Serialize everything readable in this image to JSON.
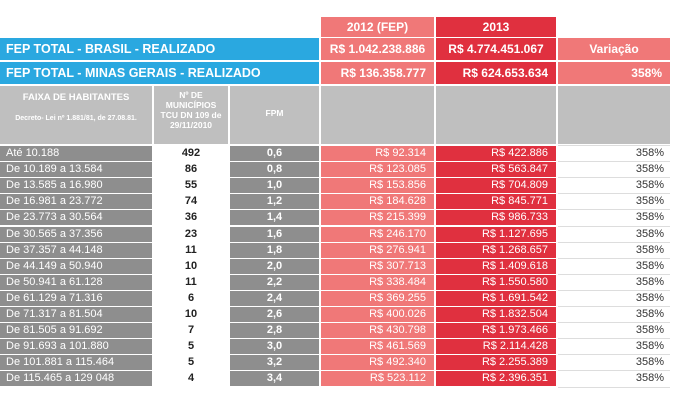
{
  "header": {
    "col_2012": "2012 (FEP)",
    "col_2013": "2013",
    "col_variation": "Variação"
  },
  "brasil": {
    "label": "FEP TOTAL - BRASIL - REALIZADO",
    "v2012": "R$ 1.042.238.886",
    "v2013": "R$ 4.774.451.067"
  },
  "mg": {
    "label": "FEP TOTAL - MINAS GERAIS - REALIZADO",
    "v2012": "R$ 136.358.777",
    "v2013": "R$ 624.653.634",
    "variation": "358%"
  },
  "columns": {
    "faixa_title": "FAIXA DE HABITANTES",
    "faixa_note": "Decreto- Lei nº 1.881/81, de 27.08.81.",
    "municipios": "Nº DE MUNICÍPIOS TCU DN 109 de 29/11/2010",
    "fpm": "FPM"
  },
  "colors": {
    "blue": "#2aa8e0",
    "light_red": "#f07878",
    "dark_red": "#e0303f",
    "gray": "#8e8e8e",
    "header_gray": "#bfbfbf"
  },
  "rows": [
    {
      "faixa": "Até 10.188",
      "municipios": "492",
      "fpm": "0,6",
      "v2012": "R$ 92.314",
      "v2013": "R$ 422.886",
      "variation": "358%"
    },
    {
      "faixa": "De 10.189 a 13.584",
      "municipios": "86",
      "fpm": "0,8",
      "v2012": "R$ 123.085",
      "v2013": "R$ 563.847",
      "variation": "358%"
    },
    {
      "faixa": "De 13.585  a  16.980",
      "municipios": "55",
      "fpm": "1,0",
      "v2012": "R$ 153.856",
      "v2013": "R$ 704.809",
      "variation": "358%"
    },
    {
      "faixa": "De 16.981  a  23.772",
      "municipios": "74",
      "fpm": "1,2",
      "v2012": "R$ 184.628",
      "v2013": "R$ 845.771",
      "variation": "358%"
    },
    {
      "faixa": "De 23.773  a  30.564",
      "municipios": "36",
      "fpm": "1,4",
      "v2012": "R$ 215.399",
      "v2013": "R$ 986.733",
      "variation": "358%"
    },
    {
      "faixa": "De 30.565  a  37.356",
      "municipios": "23",
      "fpm": "1,6",
      "v2012": "R$ 246.170",
      "v2013": "R$ 1.127.695",
      "variation": "358%"
    },
    {
      "faixa": "De 37.357  a  44.148",
      "municipios": "11",
      "fpm": "1,8",
      "v2012": "R$ 276.941",
      "v2013": "R$ 1.268.657",
      "variation": "358%"
    },
    {
      "faixa": "De 44.149  a  50.940",
      "municipios": "10",
      "fpm": "2,0",
      "v2012": "R$ 307.713",
      "v2013": "R$ 1.409.618",
      "variation": "358%"
    },
    {
      "faixa": "De 50.941  a  61.128",
      "municipios": "11",
      "fpm": "2,2",
      "v2012": "R$ 338.484",
      "v2013": "R$ 1.550.580",
      "variation": "358%"
    },
    {
      "faixa": "De 61.129  a  71.316",
      "municipios": "6",
      "fpm": "2,4",
      "v2012": "R$ 369.255",
      "v2013": "R$ 1.691.542",
      "variation": "358%"
    },
    {
      "faixa": "De 71.317  a  81.504",
      "municipios": "10",
      "fpm": "2,6",
      "v2012": "R$ 400.026",
      "v2013": "R$ 1.832.504",
      "variation": "358%"
    },
    {
      "faixa": "De 81.505  a  91.692",
      "municipios": "7",
      "fpm": "2,8",
      "v2012": "R$ 430.798",
      "v2013": "R$ 1.973.466",
      "variation": "358%"
    },
    {
      "faixa": "De 91.693  a  101.880",
      "municipios": "5",
      "fpm": "3,0",
      "v2012": "R$ 461.569",
      "v2013": "R$ 2.114.428",
      "variation": "358%"
    },
    {
      "faixa": "De 101.881  a  115.464",
      "municipios": "5",
      "fpm": "3,2",
      "v2012": "R$ 492.340",
      "v2013": "R$ 2.255.389",
      "variation": "358%"
    },
    {
      "faixa": "De 115.465  a  129 048",
      "municipios": "4",
      "fpm": "3,4",
      "v2012": "R$ 523.112",
      "v2013": "R$ 2.396.351",
      "variation": "358%"
    }
  ]
}
